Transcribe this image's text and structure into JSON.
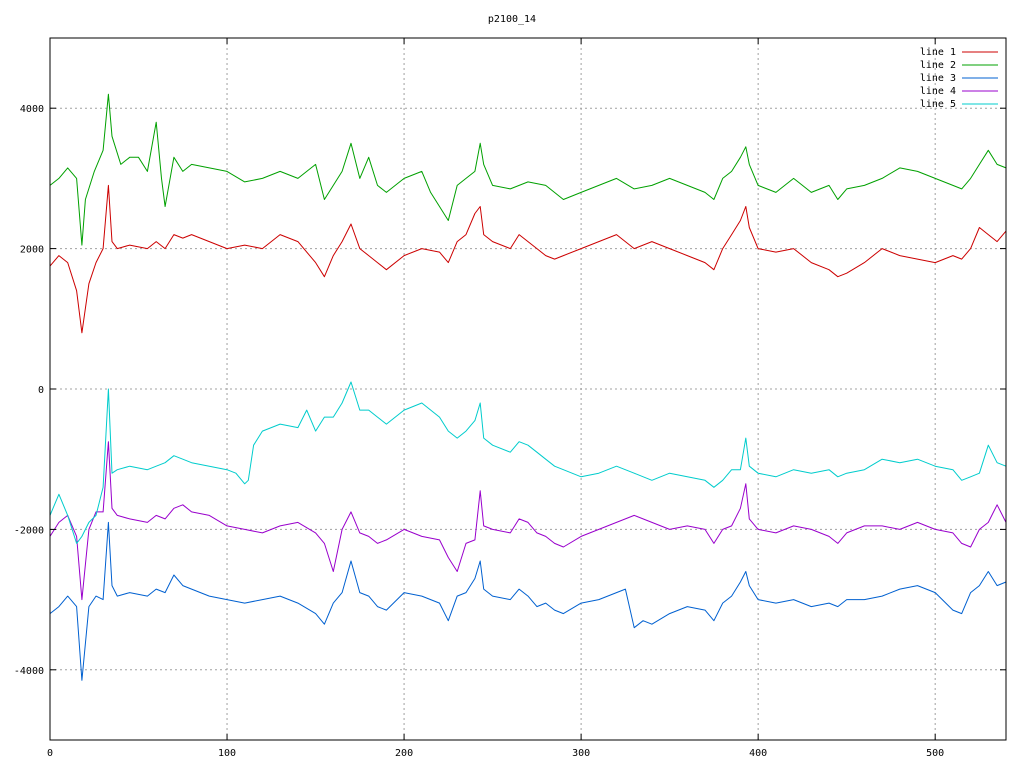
{
  "chart_data": {
    "type": "line",
    "title": "p2100_14",
    "xlabel": "",
    "ylabel": "",
    "xlim": [
      0,
      540
    ],
    "ylim": [
      -5000,
      5000
    ],
    "x_ticks": [
      0,
      100,
      200,
      300,
      400,
      500
    ],
    "y_ticks": [
      -4000,
      -2000,
      0,
      2000,
      4000
    ],
    "grid": true,
    "legend_position": "top-right",
    "series": [
      {
        "name": "line 1",
        "color": "#cc0000",
        "x": [
          0,
          5,
          10,
          15,
          18,
          22,
          26,
          30,
          33,
          35,
          38,
          45,
          55,
          60,
          65,
          70,
          75,
          80,
          90,
          100,
          110,
          120,
          130,
          140,
          150,
          155,
          160,
          165,
          170,
          175,
          180,
          185,
          190,
          200,
          210,
          220,
          225,
          230,
          235,
          240,
          243,
          245,
          250,
          260,
          265,
          270,
          275,
          280,
          285,
          290,
          300,
          310,
          320,
          330,
          340,
          350,
          360,
          370,
          375,
          380,
          385,
          390,
          393,
          395,
          400,
          410,
          420,
          430,
          440,
          445,
          450,
          460,
          470,
          480,
          490,
          500,
          510,
          515,
          520,
          525,
          530,
          535,
          540
        ],
        "y": [
          1750,
          1900,
          1800,
          1400,
          800,
          1500,
          1800,
          2000,
          2900,
          2100,
          2000,
          2050,
          2000,
          2100,
          2000,
          2200,
          2150,
          2200,
          2100,
          2000,
          2050,
          2000,
          2200,
          2100,
          1800,
          1600,
          1900,
          2100,
          2350,
          2000,
          1900,
          1800,
          1700,
          1900,
          2000,
          1950,
          1800,
          2100,
          2200,
          2500,
          2600,
          2200,
          2100,
          2000,
          2200,
          2100,
          2000,
          1900,
          1850,
          1900,
          2000,
          2100,
          2200,
          2000,
          2100,
          2000,
          1900,
          1800,
          1700,
          2000,
          2200,
          2400,
          2600,
          2300,
          2000,
          1950,
          2000,
          1800,
          1700,
          1600,
          1650,
          1800,
          2000,
          1900,
          1850,
          1800,
          1900,
          1850,
          2000,
          2300,
          2200,
          2100,
          2250
        ]
      },
      {
        "name": "line 2",
        "color": "#00a000",
        "x": [
          0,
          5,
          10,
          15,
          18,
          20,
          25,
          30,
          33,
          35,
          40,
          45,
          50,
          55,
          60,
          63,
          65,
          70,
          75,
          80,
          90,
          100,
          110,
          120,
          130,
          140,
          150,
          155,
          160,
          165,
          170,
          175,
          180,
          185,
          190,
          200,
          210,
          215,
          220,
          225,
          230,
          235,
          240,
          243,
          245,
          250,
          260,
          270,
          280,
          290,
          300,
          310,
          320,
          330,
          340,
          350,
          360,
          370,
          375,
          380,
          385,
          390,
          393,
          395,
          400,
          410,
          420,
          430,
          440,
          445,
          450,
          460,
          470,
          480,
          490,
          500,
          510,
          515,
          520,
          525,
          530,
          535,
          540
        ],
        "y": [
          2900,
          3000,
          3150,
          3000,
          2050,
          2700,
          3100,
          3400,
          4200,
          3600,
          3200,
          3300,
          3300,
          3100,
          3800,
          3000,
          2600,
          3300,
          3100,
          3200,
          3150,
          3100,
          2950,
          3000,
          3100,
          3000,
          3200,
          2700,
          2900,
          3100,
          3500,
          3000,
          3300,
          2900,
          2800,
          3000,
          3100,
          2800,
          2600,
          2400,
          2900,
          3000,
          3100,
          3500,
          3200,
          2900,
          2850,
          2950,
          2900,
          2700,
          2800,
          2900,
          3000,
          2850,
          2900,
          3000,
          2900,
          2800,
          2700,
          3000,
          3100,
          3300,
          3450,
          3200,
          2900,
          2800,
          3000,
          2800,
          2900,
          2700,
          2850,
          2900,
          3000,
          3150,
          3100,
          3000,
          2900,
          2850,
          3000,
          3200,
          3400,
          3200,
          3150
        ]
      },
      {
        "name": "line 3",
        "color": "#0060d0",
        "x": [
          0,
          5,
          10,
          15,
          18,
          22,
          26,
          30,
          33,
          35,
          38,
          45,
          55,
          60,
          65,
          70,
          75,
          80,
          90,
          100,
          110,
          120,
          130,
          140,
          150,
          155,
          160,
          165,
          170,
          175,
          180,
          185,
          190,
          200,
          210,
          220,
          225,
          230,
          235,
          240,
          243,
          245,
          250,
          260,
          265,
          270,
          275,
          280,
          285,
          290,
          300,
          310,
          320,
          325,
          330,
          335,
          340,
          350,
          360,
          370,
          375,
          380,
          385,
          390,
          393,
          395,
          400,
          410,
          420,
          430,
          440,
          445,
          450,
          460,
          470,
          480,
          490,
          500,
          510,
          515,
          520,
          525,
          530,
          535,
          540
        ],
        "y": [
          -3200,
          -3100,
          -2950,
          -3100,
          -4150,
          -3100,
          -2950,
          -3000,
          -1900,
          -2800,
          -2950,
          -2900,
          -2950,
          -2850,
          -2900,
          -2650,
          -2800,
          -2850,
          -2950,
          -3000,
          -3050,
          -3000,
          -2950,
          -3050,
          -3200,
          -3350,
          -3050,
          -2900,
          -2450,
          -2900,
          -2950,
          -3100,
          -3150,
          -2900,
          -2950,
          -3050,
          -3300,
          -2950,
          -2900,
          -2700,
          -2450,
          -2850,
          -2950,
          -3000,
          -2850,
          -2950,
          -3100,
          -3050,
          -3150,
          -3200,
          -3050,
          -3000,
          -2900,
          -2850,
          -3400,
          -3300,
          -3350,
          -3200,
          -3100,
          -3150,
          -3300,
          -3050,
          -2950,
          -2750,
          -2600,
          -2800,
          -3000,
          -3050,
          -3000,
          -3100,
          -3050,
          -3100,
          -3000,
          -3000,
          -2950,
          -2850,
          -2800,
          -2900,
          -3150,
          -3200,
          -2900,
          -2800,
          -2600,
          -2800,
          -2750
        ]
      },
      {
        "name": "line 4",
        "color": "#9900cc",
        "x": [
          0,
          5,
          10,
          15,
          18,
          22,
          26,
          30,
          33,
          35,
          38,
          45,
          55,
          60,
          65,
          70,
          75,
          80,
          90,
          100,
          110,
          120,
          130,
          140,
          150,
          155,
          160,
          165,
          170,
          175,
          180,
          185,
          190,
          200,
          210,
          220,
          225,
          230,
          235,
          240,
          243,
          245,
          250,
          260,
          265,
          270,
          275,
          280,
          285,
          290,
          300,
          310,
          320,
          330,
          340,
          350,
          360,
          370,
          375,
          380,
          385,
          390,
          393,
          395,
          400,
          410,
          420,
          430,
          440,
          445,
          450,
          460,
          470,
          480,
          490,
          500,
          510,
          515,
          520,
          525,
          530,
          535,
          540
        ],
        "y": [
          -2100,
          -1900,
          -1800,
          -2100,
          -3000,
          -2000,
          -1750,
          -1750,
          -750,
          -1700,
          -1800,
          -1850,
          -1900,
          -1800,
          -1850,
          -1700,
          -1650,
          -1750,
          -1800,
          -1950,
          -2000,
          -2050,
          -1950,
          -1900,
          -2050,
          -2200,
          -2600,
          -2000,
          -1750,
          -2050,
          -2100,
          -2200,
          -2150,
          -2000,
          -2100,
          -2150,
          -2400,
          -2600,
          -2200,
          -2150,
          -1450,
          -1950,
          -2000,
          -2050,
          -1850,
          -1900,
          -2050,
          -2100,
          -2200,
          -2250,
          -2100,
          -2000,
          -1900,
          -1800,
          -1900,
          -2000,
          -1950,
          -2000,
          -2200,
          -2000,
          -1950,
          -1700,
          -1350,
          -1850,
          -2000,
          -2050,
          -1950,
          -2000,
          -2100,
          -2200,
          -2050,
          -1950,
          -1950,
          -2000,
          -1900,
          -2000,
          -2050,
          -2200,
          -2250,
          -2000,
          -1900,
          -1650,
          -1900
        ]
      },
      {
        "name": "line 5",
        "color": "#00cccc",
        "x": [
          0,
          5,
          10,
          15,
          18,
          22,
          26,
          30,
          33,
          35,
          38,
          45,
          55,
          60,
          65,
          70,
          75,
          80,
          90,
          100,
          105,
          110,
          112,
          115,
          120,
          130,
          140,
          145,
          150,
          155,
          160,
          165,
          170,
          175,
          180,
          185,
          190,
          200,
          210,
          220,
          225,
          230,
          235,
          240,
          243,
          245,
          250,
          260,
          265,
          270,
          275,
          280,
          285,
          290,
          300,
          310,
          320,
          330,
          340,
          350,
          360,
          370,
          375,
          380,
          385,
          390,
          393,
          395,
          400,
          410,
          420,
          430,
          440,
          445,
          450,
          460,
          470,
          480,
          490,
          500,
          510,
          515,
          520,
          525,
          530,
          535,
          540
        ],
        "y": [
          -1800,
          -1500,
          -1800,
          -2200,
          -2100,
          -1900,
          -1800,
          -1400,
          0,
          -1200,
          -1150,
          -1100,
          -1150,
          -1100,
          -1050,
          -950,
          -1000,
          -1050,
          -1100,
          -1150,
          -1200,
          -1350,
          -1300,
          -800,
          -600,
          -500,
          -550,
          -300,
          -600,
          -400,
          -400,
          -200,
          100,
          -300,
          -300,
          -400,
          -500,
          -300,
          -200,
          -400,
          -600,
          -700,
          -600,
          -450,
          -200,
          -700,
          -800,
          -900,
          -750,
          -800,
          -900,
          -1000,
          -1100,
          -1150,
          -1250,
          -1200,
          -1100,
          -1200,
          -1300,
          -1200,
          -1250,
          -1300,
          -1400,
          -1300,
          -1150,
          -1150,
          -700,
          -1100,
          -1200,
          -1250,
          -1150,
          -1200,
          -1150,
          -1250,
          -1200,
          -1150,
          -1000,
          -1050,
          -1000,
          -1100,
          -1150,
          -1300,
          -1250,
          -1200,
          -800,
          -1050,
          -1100
        ]
      }
    ]
  }
}
